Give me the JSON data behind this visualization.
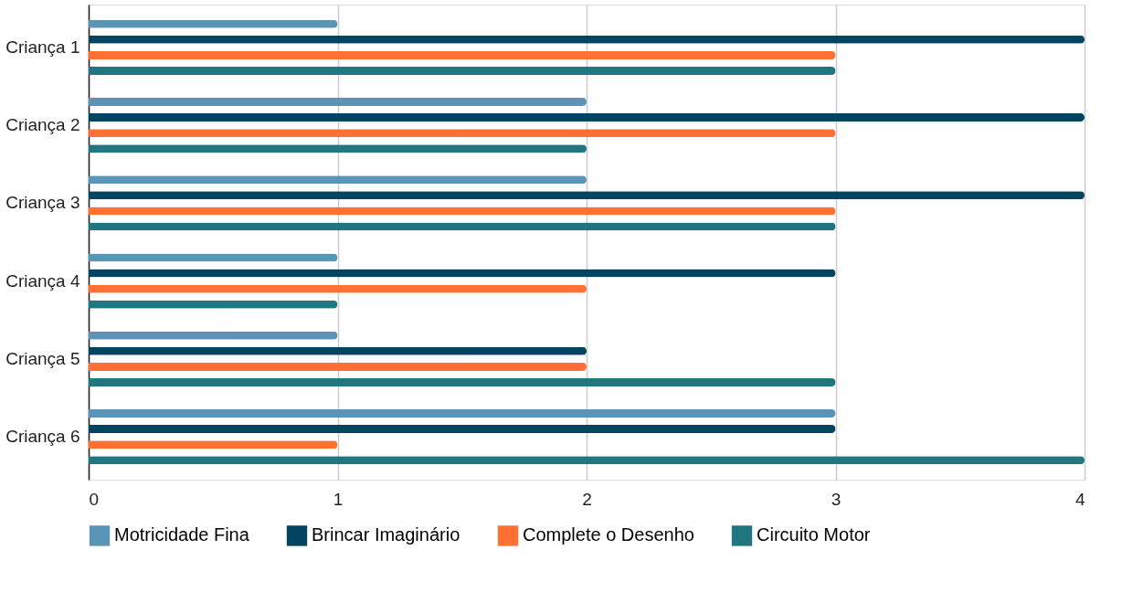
{
  "chart_data": {
    "type": "bar",
    "orientation": "horizontal",
    "categories": [
      "Criança 1",
      "Criança 2",
      "Criança 3",
      "Criança 4",
      "Criança 5",
      "Criança 6"
    ],
    "series": [
      {
        "name": "Motricidade Fina",
        "color": "#5b95b5",
        "values": [
          1,
          2,
          2,
          1,
          1,
          3
        ]
      },
      {
        "name": "Brincar Imaginário",
        "color": "#034561",
        "values": [
          4,
          4,
          4,
          3,
          2,
          3
        ]
      },
      {
        "name": "Complete o Desenho",
        "color": "#ff7133",
        "values": [
          3,
          3,
          3,
          2,
          2,
          1
        ]
      },
      {
        "name": "Circuito Motor",
        "color": "#21777f",
        "values": [
          3,
          2,
          3,
          1,
          3,
          4
        ]
      }
    ],
    "xlim": [
      0,
      4
    ],
    "xticks": [
      0,
      1,
      2,
      3,
      4
    ],
    "grid": "x",
    "legend": "bottom"
  }
}
